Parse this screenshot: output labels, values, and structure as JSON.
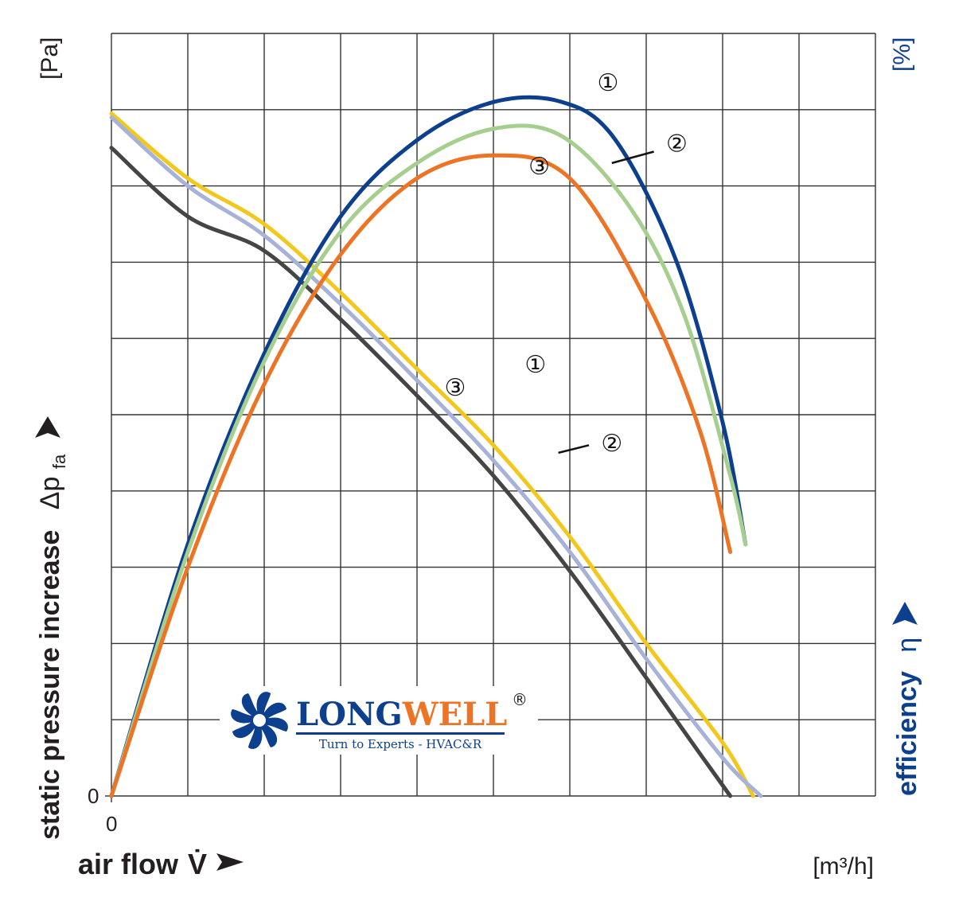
{
  "chart_data": {
    "type": "line",
    "x_axis": {
      "label": "air flow",
      "symbol": "V̇",
      "unit": "[m³/h]",
      "ticks": [
        "0"
      ],
      "range": [
        0,
        10
      ]
    },
    "y_axis_left": {
      "label": "static pressure increase",
      "symbol": "Δp",
      "subscript": "fa",
      "unit": "[Pa]",
      "ticks": [
        "0"
      ],
      "range": [
        0,
        10
      ]
    },
    "y_axis_right": {
      "label": "efficiency",
      "symbol": "η",
      "unit": "[%]"
    },
    "grid": true,
    "pressure_series": [
      {
        "name": "1",
        "color": "#f2c81e",
        "points": [
          [
            0,
            8.95
          ],
          [
            1,
            8.1
          ],
          [
            2,
            7.5
          ],
          [
            3,
            6.6
          ],
          [
            4,
            5.6
          ],
          [
            5,
            4.6
          ],
          [
            6,
            3.4
          ],
          [
            7,
            2.0
          ],
          [
            8,
            0.7
          ],
          [
            8.4,
            0
          ]
        ]
      },
      {
        "name": "2",
        "color": "#a6b2d8",
        "points": [
          [
            0,
            8.9
          ],
          [
            1,
            8.0
          ],
          [
            2,
            7.35
          ],
          [
            3,
            6.45
          ],
          [
            4,
            5.45
          ],
          [
            5,
            4.4
          ],
          [
            6,
            3.2
          ],
          [
            7,
            1.8
          ],
          [
            8,
            0.5
          ],
          [
            8.5,
            0
          ]
        ]
      },
      {
        "name": "3",
        "color": "#454545",
        "points": [
          [
            0,
            8.5
          ],
          [
            1,
            7.6
          ],
          [
            2,
            7.15
          ],
          [
            3,
            6.25
          ],
          [
            4,
            5.25
          ],
          [
            5,
            4.2
          ],
          [
            6,
            2.95
          ],
          [
            7,
            1.55
          ],
          [
            7.6,
            0.7
          ],
          [
            8.1,
            0
          ]
        ]
      }
    ],
    "efficiency_series": [
      {
        "name": "1",
        "color": "#0d3f8f",
        "points": [
          [
            0,
            0
          ],
          [
            1,
            3.3
          ],
          [
            2,
            5.8
          ],
          [
            3,
            7.6
          ],
          [
            4,
            8.6
          ],
          [
            5,
            9.1
          ],
          [
            5.9,
            9.1
          ],
          [
            6.6,
            8.6
          ],
          [
            7.4,
            7.0
          ],
          [
            8.0,
            4.9
          ],
          [
            8.3,
            3.3
          ]
        ]
      },
      {
        "name": "2",
        "color": "#a6cf8f",
        "points": [
          [
            0,
            0
          ],
          [
            1,
            3.2
          ],
          [
            2,
            5.7
          ],
          [
            3,
            7.4
          ],
          [
            4,
            8.3
          ],
          [
            5,
            8.75
          ],
          [
            5.9,
            8.65
          ],
          [
            6.8,
            7.7
          ],
          [
            7.5,
            6.3
          ],
          [
            8.1,
            4.2
          ],
          [
            8.3,
            3.3
          ]
        ]
      },
      {
        "name": "3",
        "color": "#ed7424",
        "points": [
          [
            0,
            0
          ],
          [
            1,
            3.0
          ],
          [
            2,
            5.4
          ],
          [
            3,
            7.1
          ],
          [
            4,
            8.1
          ],
          [
            5,
            8.4
          ],
          [
            6,
            8.1
          ],
          [
            7,
            6.5
          ],
          [
            7.7,
            4.8
          ],
          [
            8.1,
            3.2
          ]
        ]
      }
    ],
    "markers": [
      "①",
      "②",
      "③"
    ]
  },
  "logo": {
    "part1": "LONG",
    "part2": "WELL",
    "reg": "®",
    "tagline": "Turn to Experts - HVAC&R",
    "color1": "#0d3f8f",
    "color2": "#ed7424"
  }
}
